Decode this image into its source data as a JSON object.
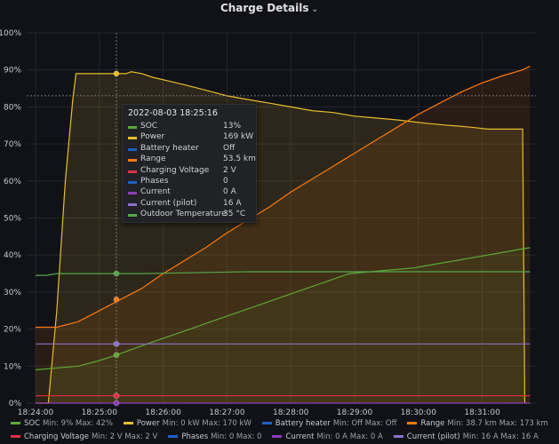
{
  "panel": {
    "title": "Charge Details",
    "menu_icon": "chevron-down-icon"
  },
  "tooltip": {
    "time": "2022-08-03 18:25:16",
    "rows": [
      {
        "name": "SOC",
        "value": "13%",
        "color": "#5da836"
      },
      {
        "name": "Power",
        "value": "169 kW",
        "color": "#e7bd2c"
      },
      {
        "name": "Battery heater",
        "value": "Off",
        "color": "#1f60c4"
      },
      {
        "name": "Range",
        "value": "53.5 km",
        "color": "#ff780a"
      },
      {
        "name": "Charging Voltage",
        "value": "2 V",
        "color": "#e02f44"
      },
      {
        "name": "Phases",
        "value": "0",
        "color": "#1f60c4"
      },
      {
        "name": "Current",
        "value": "0 A",
        "color": "#8f3bb8"
      },
      {
        "name": "Current (pilot)",
        "value": "16 A",
        "color": "#8a6fd1"
      },
      {
        "name": "Outdoor Temperature",
        "value": "35 °C",
        "color": "#56a64b"
      }
    ]
  },
  "legend": {
    "rows": [
      [
        {
          "name": "SOC",
          "stats": "Min: 9%  Max: 42%",
          "color": "#5da836"
        },
        {
          "name": "Power",
          "stats": "Min: 0 kW  Max: 170 kW",
          "color": "#e7bd2c"
        },
        {
          "name": "Battery heater",
          "stats": "Min: Off  Max: Off",
          "color": "#1f60c4"
        },
        {
          "name": "Range",
          "stats": "Min: 38.7 km  Max: 173 km",
          "color": "#ff780a"
        }
      ],
      [
        {
          "name": "Charging Voltage",
          "stats": "Min: 2 V  Max: 2 V",
          "color": "#e02f44"
        },
        {
          "name": "Phases",
          "stats": "Min: 0  Max: 0",
          "color": "#1f60c4"
        },
        {
          "name": "Current",
          "stats": "Min: 0 A  Max: 0 A",
          "color": "#8f3bb8"
        },
        {
          "name": "Current (pilot)",
          "stats": "Min: 16 A  Max: 16 A",
          "color": "#8a6fd1"
        }
      ]
    ]
  },
  "chart_data": {
    "type": "line",
    "grid": true,
    "y_ticks": [
      "0%",
      "10%",
      "20%",
      "30%",
      "40%",
      "50%",
      "60%",
      "70%",
      "80%",
      "90%",
      "100%"
    ],
    "ylim": [
      0,
      100
    ],
    "x_ticks": [
      {
        "label": "18:24:00",
        "t": 0
      },
      {
        "label": "18:25:00",
        "t": 60
      },
      {
        "label": "18:26:00",
        "t": 120
      },
      {
        "label": "18:27:00",
        "t": 180
      },
      {
        "label": "18:28:00",
        "t": 240
      },
      {
        "label": "18:29:00",
        "t": 300
      },
      {
        "label": "18:30:00",
        "t": 360
      },
      {
        "label": "18:31:00",
        "t": 420
      }
    ],
    "xlim": [
      0,
      465
    ],
    "crosshair": {
      "t": 76,
      "y": 83
    },
    "series": [
      {
        "key": "power",
        "color": "#e7bd2c",
        "fill": "rgba(231,189,44,0.13)",
        "points": [
          [
            0,
            0
          ],
          [
            12,
            0
          ],
          [
            20,
            25
          ],
          [
            28,
            60
          ],
          [
            35,
            82
          ],
          [
            38,
            89
          ],
          [
            45,
            89
          ],
          [
            60,
            89
          ],
          [
            75,
            89
          ],
          [
            85,
            89
          ],
          [
            90,
            89.5
          ],
          [
            100,
            89
          ],
          [
            110,
            88
          ],
          [
            125,
            87
          ],
          [
            140,
            86
          ],
          [
            160,
            84.5
          ],
          [
            180,
            83
          ],
          [
            200,
            82
          ],
          [
            220,
            81
          ],
          [
            240,
            80
          ],
          [
            260,
            79
          ],
          [
            280,
            78.5
          ],
          [
            300,
            77.5
          ],
          [
            320,
            77
          ],
          [
            340,
            76.5
          ],
          [
            355,
            76
          ],
          [
            370,
            75.5
          ],
          [
            390,
            75
          ],
          [
            410,
            74.5
          ],
          [
            425,
            74
          ],
          [
            445,
            74
          ],
          [
            458,
            74
          ],
          [
            460,
            0
          ]
        ]
      },
      {
        "key": "range",
        "color": "#ff780a",
        "fill": "rgba(255,120,10,0.10)",
        "points": [
          [
            0,
            20.5
          ],
          [
            20,
            20.5
          ],
          [
            40,
            22
          ],
          [
            60,
            25
          ],
          [
            80,
            28
          ],
          [
            100,
            31
          ],
          [
            120,
            35
          ],
          [
            140,
            38.5
          ],
          [
            160,
            42
          ],
          [
            180,
            46
          ],
          [
            200,
            49.5
          ],
          [
            220,
            53
          ],
          [
            240,
            57
          ],
          [
            260,
            60.5
          ],
          [
            280,
            64
          ],
          [
            300,
            67.5
          ],
          [
            320,
            71
          ],
          [
            340,
            74.5
          ],
          [
            360,
            78
          ],
          [
            380,
            81
          ],
          [
            400,
            84
          ],
          [
            420,
            86.5
          ],
          [
            440,
            88.5
          ],
          [
            458,
            90
          ],
          [
            465,
            91
          ]
        ]
      },
      {
        "key": "soc",
        "color": "#5da836",
        "fill": "rgba(93,168,54,0.06)",
        "points": [
          [
            0,
            9
          ],
          [
            20,
            9.5
          ],
          [
            40,
            10
          ],
          [
            60,
            11.5
          ],
          [
            76,
            13
          ],
          [
            95,
            15
          ],
          [
            115,
            17
          ],
          [
            135,
            19
          ],
          [
            155,
            21
          ],
          [
            175,
            23
          ],
          [
            195,
            25
          ],
          [
            215,
            27
          ],
          [
            235,
            29
          ],
          [
            255,
            31
          ],
          [
            275,
            33
          ],
          [
            295,
            35
          ],
          [
            315,
            35.5
          ],
          [
            335,
            36
          ],
          [
            355,
            36.5
          ],
          [
            375,
            37.5
          ],
          [
            395,
            38.5
          ],
          [
            415,
            39.5
          ],
          [
            435,
            40.5
          ],
          [
            455,
            41.5
          ],
          [
            465,
            42
          ]
        ]
      },
      {
        "key": "temp",
        "color": "#56a64b",
        "fill": "",
        "points": [
          [
            0,
            34.5
          ],
          [
            10,
            34.5
          ],
          [
            20,
            35
          ],
          [
            100,
            35
          ],
          [
            200,
            35.5
          ],
          [
            300,
            35.5
          ],
          [
            400,
            35.5
          ],
          [
            465,
            35.5
          ]
        ]
      },
      {
        "key": "pilot",
        "color": "#8a6fd1",
        "fill": "",
        "points": [
          [
            0,
            16
          ],
          [
            465,
            16
          ]
        ]
      },
      {
        "key": "voltage",
        "color": "#e02f44",
        "fill": "",
        "points": [
          [
            0,
            2
          ],
          [
            465,
            2
          ]
        ]
      },
      {
        "key": "current",
        "color": "#8f3bb8",
        "fill": "",
        "points": [
          [
            0,
            0
          ],
          [
            465,
            0
          ]
        ]
      }
    ],
    "hover_points": [
      {
        "y": 89,
        "color": "#e7bd2c"
      },
      {
        "y": 35,
        "color": "#56a64b"
      },
      {
        "y": 28,
        "color": "#ff780a"
      },
      {
        "y": 16,
        "color": "#8a6fd1"
      },
      {
        "y": 13,
        "color": "#5da836"
      },
      {
        "y": 2,
        "color": "#e02f44"
      },
      {
        "y": 0,
        "color": "#8f3bb8"
      }
    ]
  }
}
